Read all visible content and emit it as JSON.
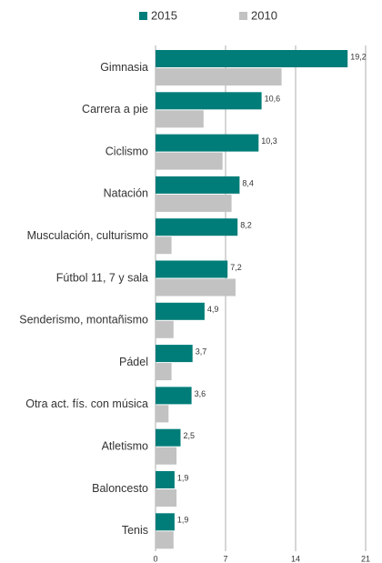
{
  "chart_data": {
    "type": "bar",
    "orientation": "horizontal",
    "categories": [
      "Gimnasia",
      "Carrera a pie",
      "Ciclismo",
      "Natación",
      "Musculación, culturismo",
      "Fútbol 11, 7  y sala",
      "Senderismo, montañismo",
      "Pádel",
      "Otra act. fís. con música",
      "Atletismo",
      "Baloncesto",
      "Tenis"
    ],
    "series": [
      {
        "name": "2015",
        "color": "#007d79",
        "values": [
          19.2,
          10.6,
          10.3,
          8.4,
          8.2,
          7.2,
          4.9,
          3.7,
          3.6,
          2.5,
          1.9,
          1.9
        ],
        "value_labels": [
          "19,2",
          "10,6",
          "10,3",
          "8,4",
          "8,2",
          "7,2",
          "4,9",
          "3,7",
          "3,6",
          "2,5",
          "1,9",
          "1,9"
        ]
      },
      {
        "name": "2010",
        "color": "#c2c2c2",
        "values": [
          12.6,
          4.8,
          6.7,
          7.6,
          1.6,
          8.0,
          1.8,
          1.6,
          1.3,
          2.1,
          2.1,
          1.8
        ]
      }
    ],
    "xlim": [
      0,
      21
    ],
    "xticks": [
      0,
      7,
      14,
      21
    ],
    "grid": true
  }
}
